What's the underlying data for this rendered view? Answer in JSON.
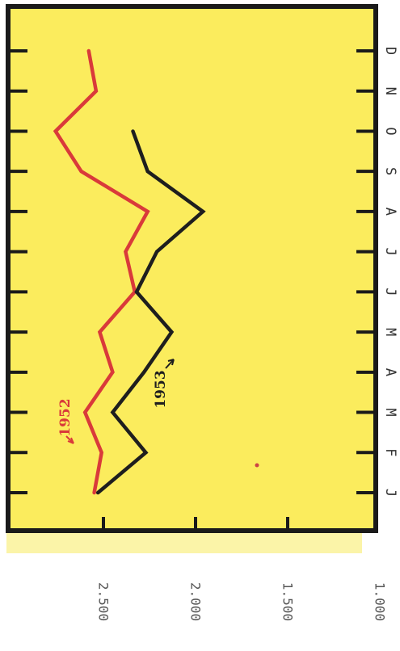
{
  "chart_data": {
    "type": "line",
    "orientation": "rotated-90-clockwise",
    "title": "",
    "xlabel": "",
    "ylabel": "",
    "categories": [
      "J",
      "F",
      "M",
      "A",
      "M",
      "J",
      "J",
      "A",
      "S",
      "O",
      "N",
      "D"
    ],
    "yticks": [
      "1.000",
      "1.500",
      "2.000",
      "2.500"
    ],
    "ylim": [
      1000,
      2900
    ],
    "grid": false,
    "colors": {
      "background": "#fbec5d",
      "frame": "#1a1a1a",
      "series_1952": "#d93a3a",
      "series_1953": "#1e1e1e"
    },
    "series": [
      {
        "name": "1952",
        "color": "#d93a3a",
        "values": [
          2550,
          2510,
          2600,
          2450,
          2520,
          2330,
          2380,
          2260,
          2620,
          2760,
          2540,
          2580
        ]
      },
      {
        "name": "1953",
        "color": "#1e1e1e",
        "values": [
          2530,
          2270,
          2450,
          2280,
          2130,
          2320,
          2210,
          1960,
          2260,
          2340,
          null,
          null
        ]
      }
    ]
  }
}
